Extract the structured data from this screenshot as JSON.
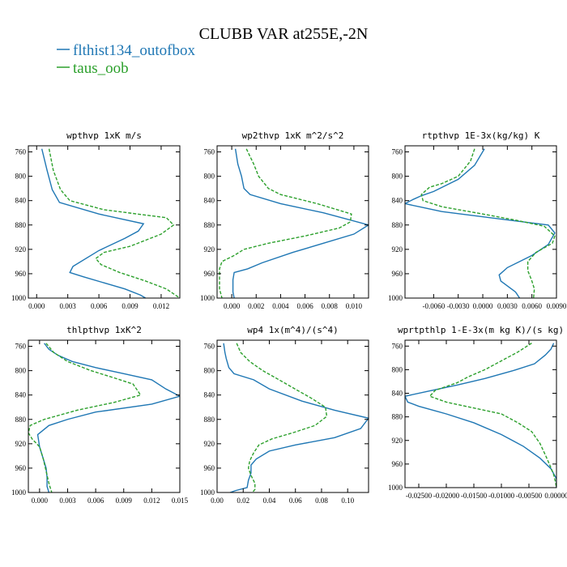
{
  "figure": {
    "title": "CLUBB VAR at255E,-2N",
    "legend": [
      {
        "name": "flthist134_outofbox",
        "color": "#1f77b4",
        "dash": "solid"
      },
      {
        "name": "taus_oob",
        "color": "#2ca02c",
        "dash": "dashed"
      }
    ]
  },
  "chart_data": [
    {
      "type": "line",
      "title": "wpthvp  1xK m/s",
      "ylim": [
        1000,
        750
      ],
      "xlim": [
        -0.0008,
        0.0138
      ],
      "xticks": [
        0.0,
        0.003,
        0.006,
        0.009,
        0.012
      ],
      "xtick_labels": [
        "0.000",
        "0.003",
        "0.006",
        "0.009",
        "0.012"
      ],
      "yticks": [
        760,
        800,
        840,
        880,
        920,
        960,
        1000
      ],
      "series": [
        {
          "name": "flthist134_outofbox",
          "points": [
            [
              0.0005,
              755
            ],
            [
              0.001,
              790
            ],
            [
              0.0015,
              822
            ],
            [
              0.0022,
              843
            ],
            [
              0.006,
              862
            ],
            [
              0.0103,
              878
            ],
            [
              0.0098,
              890
            ],
            [
              0.0085,
              902
            ],
            [
              0.006,
              922
            ],
            [
              0.0035,
              948
            ],
            [
              0.0032,
              958
            ],
            [
              0.0045,
              965
            ],
            [
              0.0065,
              975
            ],
            [
              0.0085,
              985
            ],
            [
              0.01,
              995
            ],
            [
              0.0105,
              1000
            ]
          ]
        },
        {
          "name": "taus_oob",
          "points": [
            [
              0.0012,
              755
            ],
            [
              0.0016,
              790
            ],
            [
              0.0023,
              822
            ],
            [
              0.0032,
              840
            ],
            [
              0.0065,
              855
            ],
            [
              0.0125,
              868
            ],
            [
              0.0132,
              880
            ],
            [
              0.012,
              895
            ],
            [
              0.009,
              915
            ],
            [
              0.0065,
              925
            ],
            [
              0.0057,
              935
            ],
            [
              0.0062,
              945
            ],
            [
              0.008,
              958
            ],
            [
              0.0105,
              972
            ],
            [
              0.0125,
              985
            ],
            [
              0.0138,
              1000
            ]
          ]
        }
      ]
    },
    {
      "type": "line",
      "title": "wp2thvp  1xK m^2/s^2",
      "ylim": [
        1000,
        750
      ],
      "xlim": [
        -0.0012,
        0.0112
      ],
      "xticks": [
        0.0,
        0.002,
        0.004,
        0.006,
        0.008,
        0.01
      ],
      "xtick_labels": [
        "0.000",
        "0.002",
        "0.004",
        "0.006",
        "0.008",
        "0.010"
      ],
      "yticks": [
        760,
        800,
        840,
        880,
        920,
        960,
        1000
      ],
      "series": [
        {
          "name": "flthist134_outofbox",
          "points": [
            [
              0.0003,
              755
            ],
            [
              0.0005,
              780
            ],
            [
              0.0008,
              800
            ],
            [
              0.001,
              820
            ],
            [
              0.0015,
              830
            ],
            [
              0.004,
              845
            ],
            [
              0.0075,
              860
            ],
            [
              0.0112,
              880
            ],
            [
              0.01,
              895
            ],
            [
              0.0075,
              910
            ],
            [
              0.005,
              925
            ],
            [
              0.0025,
              942
            ],
            [
              0.0013,
              952
            ],
            [
              0.0002,
              958
            ],
            [
              0.0001,
              970
            ],
            [
              0.0001,
              990
            ],
            [
              0.0002,
              1000
            ]
          ]
        },
        {
          "name": "taus_oob",
          "points": [
            [
              0.0012,
              755
            ],
            [
              0.0018,
              780
            ],
            [
              0.0022,
              800
            ],
            [
              0.003,
              820
            ],
            [
              0.004,
              830
            ],
            [
              0.007,
              845
            ],
            [
              0.0098,
              862
            ],
            [
              0.0097,
              875
            ],
            [
              0.0088,
              885
            ],
            [
              0.006,
              898
            ],
            [
              0.003,
              910
            ],
            [
              0.001,
              920
            ],
            [
              0.0002,
              930
            ],
            [
              -0.0008,
              940
            ],
            [
              -0.001,
              952
            ],
            [
              -0.001,
              965
            ],
            [
              -0.001,
              985
            ],
            [
              -0.0008,
              1000
            ]
          ]
        }
      ]
    },
    {
      "type": "line",
      "title": "rtpthvp  1E-3x(kg/kg) K",
      "ylim": [
        1000,
        750
      ],
      "xlim": [
        -0.0095,
        0.009
      ],
      "xticks": [
        -0.006,
        -0.003,
        0.0,
        0.003,
        0.006,
        0.009
      ],
      "xtick_labels": [
        "-0.0060",
        "-0.0030",
        "0.0000",
        "0.0030",
        "0.0060",
        "0.0090"
      ],
      "yticks": [
        760,
        800,
        840,
        880,
        920,
        960,
        1000
      ],
      "series": [
        {
          "name": "flthist134_outofbox",
          "points": [
            [
              0.0002,
              755
            ],
            [
              -0.001,
              782
            ],
            [
              -0.003,
              805
            ],
            [
              -0.006,
              825
            ],
            [
              -0.0075,
              832
            ],
            [
              -0.0085,
              838
            ],
            [
              -0.0095,
              845
            ],
            [
              -0.005,
              858
            ],
            [
              0.002,
              870
            ],
            [
              0.008,
              880
            ],
            [
              0.0088,
              893
            ],
            [
              0.008,
              912
            ],
            [
              0.006,
              930
            ],
            [
              0.003,
              950
            ],
            [
              0.002,
              962
            ],
            [
              0.0022,
              972
            ],
            [
              0.004,
              990
            ],
            [
              0.0045,
              1000
            ]
          ]
        },
        {
          "name": "taus_oob",
          "points": [
            [
              -0.001,
              755
            ],
            [
              -0.0015,
              775
            ],
            [
              -0.003,
              800
            ],
            [
              -0.005,
              812
            ],
            [
              -0.0065,
              818
            ],
            [
              -0.0075,
              830
            ],
            [
              -0.0073,
              840
            ],
            [
              -0.005,
              850
            ],
            [
              0.0,
              862
            ],
            [
              0.004,
              872
            ],
            [
              0.0075,
              882
            ],
            [
              0.0088,
              898
            ],
            [
              0.0085,
              910
            ],
            [
              0.0065,
              925
            ],
            [
              0.0055,
              940
            ],
            [
              0.0055,
              955
            ],
            [
              0.006,
              972
            ],
            [
              0.0063,
              985
            ],
            [
              0.0062,
              1000
            ]
          ]
        }
      ]
    },
    {
      "type": "line",
      "title": "thlpthvp  1xK^2",
      "ylim": [
        1000,
        750
      ],
      "xlim": [
        -0.0012,
        0.015
      ],
      "xticks": [
        0.0,
        0.003,
        0.006,
        0.009,
        0.012,
        0.015
      ],
      "xtick_labels": [
        "0.000",
        "0.003",
        "0.006",
        "0.009",
        "0.012",
        "0.015"
      ],
      "yticks": [
        760,
        800,
        840,
        880,
        920,
        960,
        1000
      ],
      "series": [
        {
          "name": "flthist134_outofbox",
          "points": [
            [
              0.0005,
              755
            ],
            [
              0.001,
              765
            ],
            [
              0.002,
              775
            ],
            [
              0.0035,
              785
            ],
            [
              0.006,
              795
            ],
            [
              0.009,
              805
            ],
            [
              0.012,
              815
            ],
            [
              0.0135,
              830
            ],
            [
              0.015,
              842
            ],
            [
              0.012,
              855
            ],
            [
              0.006,
              868
            ],
            [
              0.003,
              880
            ],
            [
              0.001,
              890
            ],
            [
              -0.0002,
              905
            ],
            [
              0.0,
              925
            ],
            [
              0.0004,
              945
            ],
            [
              0.0007,
              960
            ],
            [
              0.0008,
              975
            ],
            [
              0.0008,
              990
            ],
            [
              0.001,
              1000
            ]
          ]
        },
        {
          "name": "taus_oob",
          "points": [
            [
              0.0007,
              755
            ],
            [
              0.0015,
              770
            ],
            [
              0.003,
              785
            ],
            [
              0.0055,
              800
            ],
            [
              0.008,
              812
            ],
            [
              0.01,
              822
            ],
            [
              0.0108,
              840
            ],
            [
              0.008,
              852
            ],
            [
              0.004,
              865
            ],
            [
              0.0005,
              880
            ],
            [
              -0.001,
              890
            ],
            [
              -0.0012,
              902
            ],
            [
              -0.0008,
              912
            ],
            [
              0.0,
              925
            ],
            [
              0.0004,
              945
            ],
            [
              0.0007,
              965
            ],
            [
              0.001,
              985
            ],
            [
              0.0013,
              1000
            ]
          ]
        }
      ]
    },
    {
      "type": "line",
      "title": "wp4  1x(m^4)/(s^4)",
      "ylim": [
        1000,
        750
      ],
      "xlim": [
        0.0,
        0.116
      ],
      "xticks": [
        0.0,
        0.02,
        0.04,
        0.06,
        0.08,
        0.1
      ],
      "xtick_labels": [
        "0.00",
        "0.02",
        "0.04",
        "0.06",
        "0.08",
        "0.10"
      ],
      "yticks": [
        760,
        800,
        840,
        880,
        920,
        960,
        1000
      ],
      "series": [
        {
          "name": "flthist134_outofbox",
          "points": [
            [
              0.005,
              755
            ],
            [
              0.006,
              770
            ],
            [
              0.007,
              780
            ],
            [
              0.009,
              795
            ],
            [
              0.013,
              805
            ],
            [
              0.028,
              815
            ],
            [
              0.04,
              830
            ],
            [
              0.065,
              850
            ],
            [
              0.09,
              865
            ],
            [
              0.116,
              878
            ],
            [
              0.11,
              895
            ],
            [
              0.09,
              910
            ],
            [
              0.06,
              922
            ],
            [
              0.04,
              932
            ],
            [
              0.03,
              945
            ],
            [
              0.026,
              955
            ],
            [
              0.026,
              968
            ],
            [
              0.024,
              980
            ],
            [
              0.023,
              992
            ],
            [
              0.014,
              997
            ],
            [
              0.01,
              1000
            ]
          ]
        },
        {
          "name": "taus_oob",
          "points": [
            [
              0.015,
              755
            ],
            [
              0.018,
              770
            ],
            [
              0.025,
              785
            ],
            [
              0.035,
              800
            ],
            [
              0.045,
              812
            ],
            [
              0.058,
              828
            ],
            [
              0.072,
              845
            ],
            [
              0.083,
              860
            ],
            [
              0.084,
              875
            ],
            [
              0.075,
              890
            ],
            [
              0.058,
              902
            ],
            [
              0.042,
              912
            ],
            [
              0.032,
              922
            ],
            [
              0.028,
              935
            ],
            [
              0.025,
              948
            ],
            [
              0.024,
              960
            ],
            [
              0.026,
              972
            ],
            [
              0.029,
              985
            ],
            [
              0.029,
              995
            ],
            [
              0.027,
              1000
            ]
          ]
        }
      ]
    },
    {
      "type": "line",
      "title": "wprtpthlp  1-E-3x(m kg K)/(s kg)",
      "ylim": [
        1000,
        750
      ],
      "xlim": [
        -0.0275,
        0.0
      ],
      "xticks": [
        -0.025,
        -0.02,
        -0.015,
        -0.01,
        -0.005,
        0.0
      ],
      "xtick_labels": [
        "-0.02500",
        "-0.02000",
        "-0.01500",
        "-0.01000",
        "-0.00500",
        "0.00000"
      ],
      "yticks": [
        760,
        800,
        840,
        880,
        920,
        960,
        1000
      ],
      "series": [
        {
          "name": "flthist134_outofbox",
          "points": [
            [
              -0.0005,
              755
            ],
            [
              -0.001,
              765
            ],
            [
              -0.002,
              775
            ],
            [
              -0.004,
              790
            ],
            [
              -0.008,
              802
            ],
            [
              -0.013,
              815
            ],
            [
              -0.018,
              826
            ],
            [
              -0.023,
              836
            ],
            [
              -0.0275,
              845
            ],
            [
              -0.027,
              855
            ],
            [
              -0.025,
              862
            ],
            [
              -0.02,
              875
            ],
            [
              -0.015,
              890
            ],
            [
              -0.01,
              910
            ],
            [
              -0.006,
              930
            ],
            [
              -0.003,
              950
            ],
            [
              -0.001,
              968
            ],
            [
              0.0,
              985
            ],
            [
              0.0,
              1000
            ]
          ]
        },
        {
          "name": "taus_oob",
          "points": [
            [
              -0.0045,
              755
            ],
            [
              -0.007,
              770
            ],
            [
              -0.01,
              785
            ],
            [
              -0.013,
              800
            ],
            [
              -0.016,
              812
            ],
            [
              -0.018,
              822
            ],
            [
              -0.022,
              835
            ],
            [
              -0.023,
              845
            ],
            [
              -0.02,
              855
            ],
            [
              -0.015,
              865
            ],
            [
              -0.01,
              875
            ],
            [
              -0.007,
              890
            ],
            [
              -0.0045,
              905
            ],
            [
              -0.003,
              925
            ],
            [
              -0.002,
              945
            ],
            [
              -0.0012,
              962
            ],
            [
              -0.0005,
              978
            ],
            [
              -0.0002,
              990
            ],
            [
              0.0,
              1000
            ]
          ]
        }
      ]
    }
  ]
}
